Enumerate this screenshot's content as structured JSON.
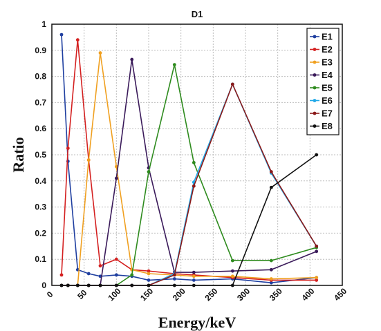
{
  "chart_data": {
    "type": "line",
    "title": "D1",
    "xlabel": "Energy/keV",
    "ylabel": "Ratio",
    "xlim": [
      0,
      450
    ],
    "ylim": [
      0,
      1
    ],
    "xticks": [
      0,
      50,
      100,
      150,
      200,
      250,
      300,
      350,
      400,
      450
    ],
    "yticks": [
      0,
      0.1,
      0.2,
      0.3,
      0.4,
      0.5,
      0.6,
      0.7,
      0.8,
      0.9,
      1
    ],
    "grid": true,
    "legend_position": "top-right",
    "series": [
      {
        "name": "E1",
        "color": "#1f3fa0",
        "x": [
          15,
          25,
          40,
          57,
          75,
          100,
          124,
          150,
          190,
          220,
          280,
          340,
          410
        ],
        "y": [
          0.96,
          0.475,
          0.06,
          0.045,
          0.035,
          0.04,
          0.035,
          0.02,
          0.025,
          0.02,
          0.025,
          0.01,
          0.03
        ]
      },
      {
        "name": "E2",
        "color": "#d42020",
        "x": [
          15,
          25,
          40,
          57,
          75,
          100,
          124,
          150,
          190,
          220,
          280,
          340,
          410
        ],
        "y": [
          0.04,
          0.525,
          0.94,
          0.48,
          0.075,
          0.1,
          0.06,
          0.055,
          0.045,
          0.04,
          0.03,
          0.02,
          0.02
        ]
      },
      {
        "name": "E3",
        "color": "#f0a020",
        "x": [
          15,
          25,
          40,
          57,
          75,
          100,
          124,
          150,
          190,
          220,
          280,
          340,
          410
        ],
        "y": [
          0,
          0,
          0,
          0.48,
          0.89,
          0.455,
          0.06,
          0.045,
          0.04,
          0.035,
          0.035,
          0.025,
          0.03
        ]
      },
      {
        "name": "E4",
        "color": "#3a1a5a",
        "x": [
          15,
          25,
          40,
          57,
          75,
          100,
          124,
          150,
          190,
          220,
          280,
          340,
          410
        ],
        "y": [
          0,
          0,
          0,
          0,
          0,
          0.41,
          0.865,
          0.45,
          0.05,
          0.05,
          0.055,
          0.06,
          0.13
        ]
      },
      {
        "name": "E5",
        "color": "#2e8b1e",
        "x": [
          15,
          25,
          40,
          57,
          75,
          100,
          124,
          150,
          190,
          220,
          280,
          340,
          410
        ],
        "y": [
          0,
          0,
          0,
          0,
          0,
          0,
          0.04,
          0.435,
          0.845,
          0.47,
          0.095,
          0.095,
          0.145
        ]
      },
      {
        "name": "E6",
        "color": "#20a8e8",
        "x": [
          15,
          25,
          40,
          57,
          75,
          100,
          124,
          150,
          190,
          220,
          280,
          340,
          410
        ],
        "y": [
          0,
          0,
          0,
          0,
          0,
          0,
          0,
          0,
          0.045,
          0.395,
          0.77,
          0.43,
          0.15
        ]
      },
      {
        "name": "E7",
        "color": "#8b1a1a",
        "x": [
          15,
          25,
          40,
          57,
          75,
          100,
          124,
          150,
          190,
          220,
          280,
          340,
          410
        ],
        "y": [
          0,
          0,
          0,
          0,
          0,
          0,
          0,
          0,
          0.04,
          0.38,
          0.77,
          0.435,
          0.15
        ]
      },
      {
        "name": "E8",
        "color": "#111111",
        "x": [
          15,
          25,
          40,
          57,
          75,
          100,
          124,
          150,
          190,
          220,
          280,
          340,
          410
        ],
        "y": [
          0,
          0,
          0,
          0,
          0,
          0,
          0,
          0,
          0,
          0,
          0,
          0.375,
          0.5
        ]
      }
    ]
  }
}
